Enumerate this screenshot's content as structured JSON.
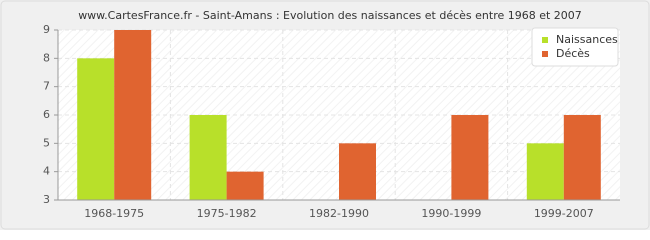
{
  "chart_data": {
    "type": "bar",
    "title": "www.CartesFrance.fr - Saint-Amans : Evolution des naissances et décès entre 1968 et 2007",
    "categories": [
      "1968-1975",
      "1975-1982",
      "1982-1990",
      "1990-1999",
      "1999-2007"
    ],
    "series": [
      {
        "name": "Naissances",
        "color": "#b8e02a",
        "values": [
          8,
          6,
          3,
          3,
          5
        ]
      },
      {
        "name": "Décès",
        "color": "#e06430",
        "values": [
          9,
          4,
          5,
          6,
          6
        ]
      }
    ],
    "ylim": [
      3,
      9
    ],
    "yticks": [
      3,
      4,
      5,
      6,
      7,
      8,
      9
    ],
    "grid": true,
    "legend": "top-right"
  }
}
